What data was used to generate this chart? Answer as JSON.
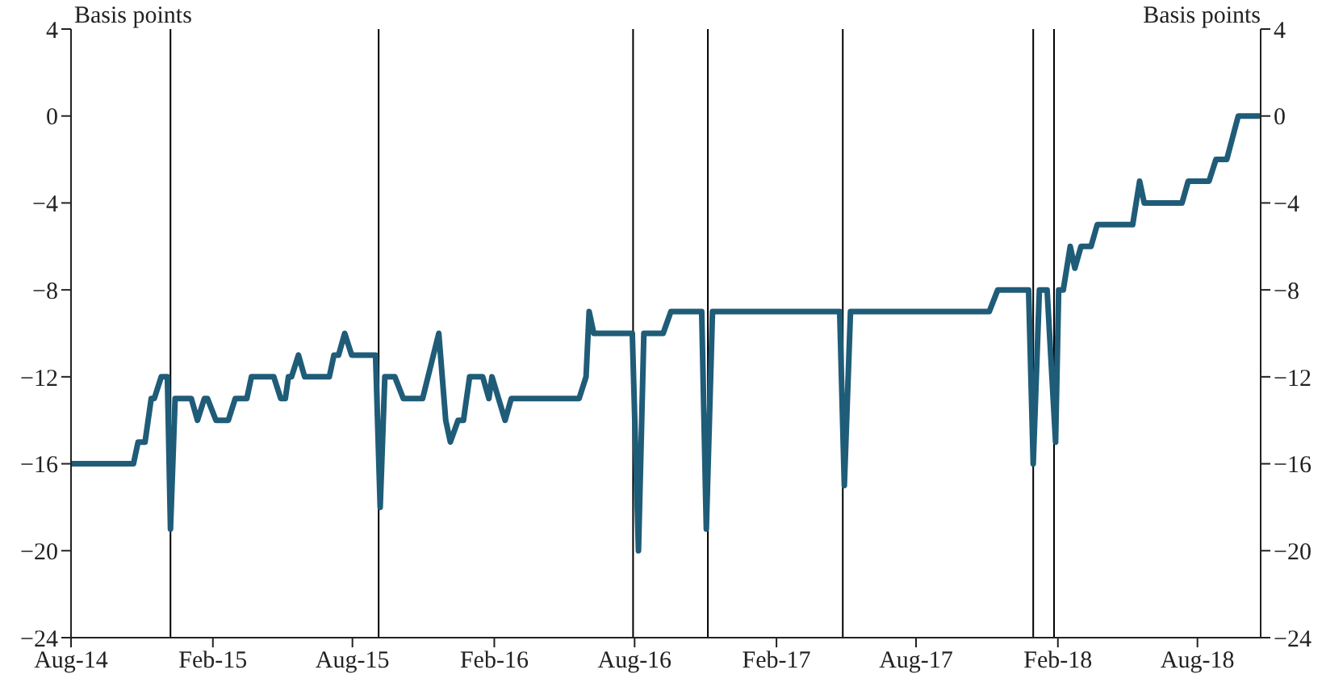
{
  "chart_data": {
    "type": "line",
    "ylabel": "Basis points",
    "y2label": "Basis points",
    "xlim": [
      "2014-08-01",
      "2018-10-22"
    ],
    "xticks": [
      {
        "value": "2014-08-01",
        "label": "Aug-14"
      },
      {
        "value": "2015-02-01",
        "label": "Feb-15"
      },
      {
        "value": "2015-08-01",
        "label": "Aug-15"
      },
      {
        "value": "2016-02-01",
        "label": "Feb-16"
      },
      {
        "value": "2016-08-01",
        "label": "Aug-16"
      },
      {
        "value": "2017-02-01",
        "label": "Feb-17"
      },
      {
        "value": "2017-08-01",
        "label": "Aug-17"
      },
      {
        "value": "2018-02-01",
        "label": "Feb-18"
      },
      {
        "value": "2018-08-01",
        "label": "Aug-18"
      }
    ],
    "ylim": [
      -24,
      4
    ],
    "yticks": [
      -24,
      -20,
      -16,
      -12,
      -8,
      -4,
      0,
      4
    ],
    "y2lim": [
      -24,
      4
    ],
    "y2ticks": [
      -24,
      -20,
      -16,
      -12,
      -8,
      -4,
      0,
      4
    ],
    "grid": false,
    "legend": false,
    "marker": "none",
    "line_style": "solid",
    "x": [
      "2014-08-01",
      "2014-10-21",
      "2014-10-27",
      "2014-11-05",
      "2014-11-13",
      "2014-11-17",
      "2014-11-26",
      "2014-12-04",
      "2014-12-08",
      "2014-12-14",
      "2015-01-04",
      "2015-01-12",
      "2015-01-21",
      "2015-01-25",
      "2015-02-05",
      "2015-02-21",
      "2015-03-02",
      "2015-03-17",
      "2015-03-23",
      "2015-04-21",
      "2015-04-30",
      "2015-05-06",
      "2015-05-10",
      "2015-05-14",
      "2015-05-23",
      "2015-05-31",
      "2015-07-02",
      "2015-07-08",
      "2015-07-14",
      "2015-07-22",
      "2015-07-31",
      "2015-08-31",
      "2015-09-06",
      "2015-09-12",
      "2015-09-25",
      "2015-10-06",
      "2015-10-31",
      "2015-11-21",
      "2015-11-30",
      "2015-12-06",
      "2015-12-16",
      "2015-12-23",
      "2015-12-31",
      "2016-01-17",
      "2016-01-25",
      "2016-01-29",
      "2016-02-15",
      "2016-02-23",
      "2016-05-21",
      "2016-05-30",
      "2016-06-03",
      "2016-06-09",
      "2016-07-29",
      "2016-08-06",
      "2016-08-13",
      "2016-09-07",
      "2016-09-17",
      "2016-10-27",
      "2016-11-02",
      "2016-11-10",
      "2017-04-24",
      "2017-04-30",
      "2017-05-08",
      "2017-11-04",
      "2017-11-15",
      "2017-12-25",
      "2017-12-31",
      "2018-01-08",
      "2018-01-18",
      "2018-01-29",
      "2018-02-02",
      "2018-02-08",
      "2018-02-17",
      "2018-02-23",
      "2018-03-03",
      "2018-03-16",
      "2018-03-24",
      "2018-05-09",
      "2018-05-18",
      "2018-05-24",
      "2018-07-12",
      "2018-07-20",
      "2018-08-16",
      "2018-08-25",
      "2018-09-08",
      "2018-09-23",
      "2018-10-20"
    ],
    "series": [
      {
        "color": "#1f5c78",
        "values": [
          -16,
          -16,
          -15,
          -15,
          -13,
          -13,
          -12,
          -12,
          -19,
          -13,
          -13,
          -14,
          -13,
          -13,
          -14,
          -14,
          -13,
          -13,
          -12,
          -12,
          -13,
          -13,
          -12,
          -12,
          -11,
          -12,
          -12,
          -11,
          -11,
          -10,
          -11,
          -11,
          -18,
          -12,
          -12,
          -13,
          -13,
          -10,
          -14,
          -15,
          -14,
          -14,
          -12,
          -12,
          -13,
          -12,
          -14,
          -13,
          -13,
          -12,
          -9,
          -10,
          -10,
          -20,
          -10,
          -10,
          -9,
          -9,
          -19,
          -9,
          -9,
          -17,
          -9,
          -9,
          -8,
          -8,
          -16,
          -8,
          -8,
          -15,
          -8,
          -8,
          -6,
          -7,
          -6,
          -6,
          -5,
          -5,
          -3,
          -4,
          -4,
          -3,
          -3,
          -2,
          -2,
          0,
          0
        ]
      }
    ],
    "ref_lines": [
      {
        "axis": "x",
        "value": "2014-12-08",
        "color": "#000000"
      },
      {
        "axis": "x",
        "value": "2015-09-04",
        "color": "#000000"
      },
      {
        "axis": "x",
        "value": "2016-07-30",
        "color": "#000000"
      },
      {
        "axis": "x",
        "value": "2016-11-04",
        "color": "#000000"
      },
      {
        "axis": "x",
        "value": "2017-04-28",
        "color": "#000000"
      },
      {
        "axis": "x",
        "value": "2017-12-31",
        "color": "#000000"
      },
      {
        "axis": "x",
        "value": "2018-01-27",
        "color": "#000000"
      }
    ]
  }
}
